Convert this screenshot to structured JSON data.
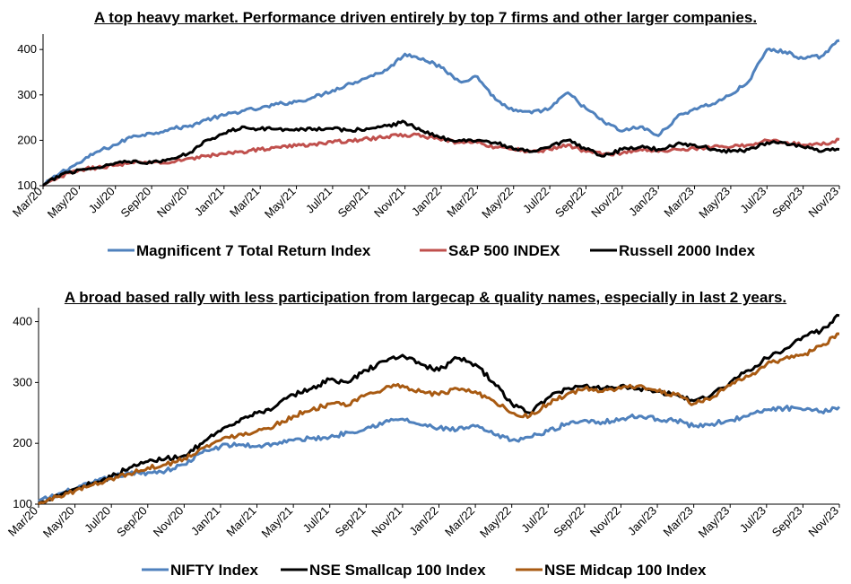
{
  "chart_data": [
    {
      "type": "line",
      "title": "A top heavy market. Performance driven entirely by top 7 firms and other larger companies.",
      "xlabel": "",
      "ylabel": "",
      "ylim": [
        100,
        430
      ],
      "yticks": [
        100,
        200,
        300,
        400
      ],
      "grid": false,
      "legend_position": "bottom",
      "x_tick_labels": [
        "Mar/20",
        "May/20",
        "Jul/20",
        "Sep/20",
        "Nov/20",
        "Jan/21",
        "Mar/21",
        "May/21",
        "Jul/21",
        "Sep/21",
        "Nov/21",
        "Jan/22",
        "Mar/22",
        "May/22",
        "Jul/22",
        "Sep/22",
        "Nov/22",
        "Jan/23",
        "Mar/23",
        "May/23",
        "Jul/23",
        "Sep/23",
        "Nov/23"
      ],
      "x": [
        "Mar/20",
        "Apr/20",
        "May/20",
        "Jun/20",
        "Jul/20",
        "Aug/20",
        "Sep/20",
        "Oct/20",
        "Nov/20",
        "Dec/20",
        "Jan/21",
        "Feb/21",
        "Mar/21",
        "Apr/21",
        "May/21",
        "Jun/21",
        "Jul/21",
        "Aug/21",
        "Sep/21",
        "Oct/21",
        "Nov/21",
        "Dec/21",
        "Jan/22",
        "Feb/22",
        "Mar/22",
        "Apr/22",
        "May/22",
        "Jun/22",
        "Jul/22",
        "Aug/22",
        "Sep/22",
        "Oct/22",
        "Nov/22",
        "Dec/22",
        "Jan/23",
        "Feb/23",
        "Mar/23",
        "Apr/23",
        "May/23",
        "Jun/23",
        "Jul/23",
        "Aug/23",
        "Sep/23",
        "Oct/23",
        "Nov/23"
      ],
      "series": [
        {
          "name": "Magnificent 7 Total Return Index",
          "color": "#4f81bd",
          "values": [
            100,
            130,
            150,
            175,
            190,
            210,
            215,
            225,
            230,
            245,
            255,
            265,
            270,
            280,
            285,
            295,
            310,
            325,
            340,
            355,
            390,
            380,
            360,
            330,
            340,
            290,
            265,
            260,
            270,
            305,
            270,
            240,
            220,
            230,
            210,
            250,
            270,
            280,
            300,
            330,
            400,
            395,
            380,
            385,
            420
          ]
        },
        {
          "name": "S&P 500 INDEX",
          "color": "#c0504d",
          "values": [
            100,
            120,
            135,
            140,
            145,
            150,
            152,
            150,
            160,
            165,
            170,
            175,
            180,
            185,
            188,
            192,
            195,
            200,
            203,
            208,
            212,
            210,
            200,
            195,
            195,
            185,
            180,
            175,
            180,
            190,
            175,
            170,
            172,
            180,
            175,
            180,
            182,
            185,
            185,
            190,
            200,
            195,
            190,
            190,
            202
          ]
        },
        {
          "name": "Russell 2000 Index",
          "color": "#000000",
          "values": [
            100,
            125,
            135,
            140,
            150,
            155,
            150,
            158,
            170,
            200,
            215,
            230,
            225,
            225,
            225,
            225,
            225,
            222,
            225,
            232,
            240,
            220,
            205,
            200,
            200,
            195,
            180,
            175,
            185,
            200,
            180,
            165,
            180,
            185,
            180,
            192,
            190,
            180,
            175,
            180,
            195,
            195,
            185,
            175,
            180
          ]
        }
      ]
    },
    {
      "type": "line",
      "title": "A broad based rally with less participation from largecap & quality names, especially in last 2 years.",
      "xlabel": "",
      "ylabel": "",
      "ylim": [
        100,
        420
      ],
      "yticks": [
        100,
        200,
        300,
        400
      ],
      "grid": false,
      "legend_position": "bottom",
      "x_tick_labels": [
        "Mar/20",
        "May/20",
        "Jul/20",
        "Sep/20",
        "Nov/20",
        "Jan/21",
        "Mar/21",
        "May/21",
        "Jul/21",
        "Sep/21",
        "Nov/21",
        "Jan/22",
        "Mar/22",
        "May/22",
        "Jul/22",
        "Sep/22",
        "Nov/22",
        "Jan/23",
        "Mar/23",
        "May/23",
        "Jul/23",
        "Sep/23",
        "Nov/23"
      ],
      "x": [
        "Mar/20",
        "Apr/20",
        "May/20",
        "Jun/20",
        "Jul/20",
        "Aug/20",
        "Sep/20",
        "Oct/20",
        "Nov/20",
        "Dec/20",
        "Jan/21",
        "Feb/21",
        "Mar/21",
        "Apr/21",
        "May/21",
        "Jun/21",
        "Jul/21",
        "Aug/21",
        "Sep/21",
        "Oct/21",
        "Nov/21",
        "Dec/21",
        "Jan/22",
        "Feb/22",
        "Mar/22",
        "Apr/22",
        "May/22",
        "Jun/22",
        "Jul/22",
        "Aug/22",
        "Sep/22",
        "Oct/22",
        "Nov/22",
        "Dec/22",
        "Jan/23",
        "Feb/23",
        "Mar/23",
        "Apr/23",
        "May/23",
        "Jun/23",
        "Jul/23",
        "Aug/23",
        "Sep/23",
        "Oct/23",
        "Nov/23"
      ],
      "series": [
        {
          "name": "NIFTY Index",
          "color": "#4f81bd",
          "values": [
            105,
            115,
            125,
            135,
            145,
            150,
            152,
            155,
            165,
            185,
            195,
            198,
            195,
            200,
            205,
            208,
            210,
            218,
            225,
            235,
            240,
            230,
            225,
            222,
            228,
            215,
            205,
            210,
            220,
            232,
            238,
            235,
            240,
            245,
            240,
            238,
            228,
            232,
            238,
            245,
            255,
            258,
            255,
            252,
            260
          ]
        },
        {
          "name": "NSE Smallcap 100 Index",
          "color": "#000000",
          "values": [
            100,
            115,
            125,
            135,
            145,
            160,
            170,
            175,
            180,
            200,
            220,
            235,
            250,
            260,
            280,
            290,
            305,
            300,
            320,
            335,
            345,
            330,
            320,
            340,
            330,
            300,
            265,
            250,
            275,
            290,
            295,
            290,
            295,
            290,
            285,
            280,
            270,
            280,
            300,
            320,
            340,
            355,
            375,
            385,
            410
          ]
        },
        {
          "name": "NSE Midcap 100 Index",
          "color": "#a85a12",
          "values": [
            100,
            112,
            122,
            132,
            142,
            150,
            160,
            165,
            175,
            192,
            205,
            215,
            220,
            230,
            245,
            255,
            265,
            262,
            280,
            290,
            295,
            285,
            280,
            290,
            285,
            270,
            250,
            245,
            265,
            280,
            290,
            285,
            290,
            295,
            285,
            280,
            265,
            275,
            295,
            310,
            330,
            340,
            345,
            360,
            380
          ]
        }
      ]
    }
  ]
}
